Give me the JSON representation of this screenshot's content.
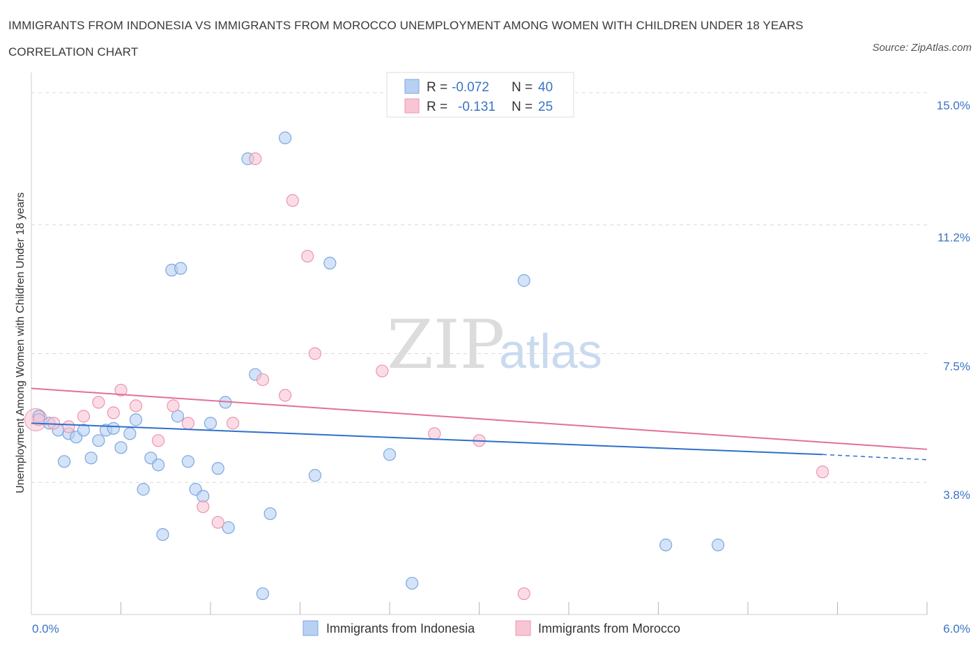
{
  "title": "IMMIGRANTS FROM INDONESIA VS IMMIGRANTS FROM MOROCCO UNEMPLOYMENT AMONG WOMEN WITH CHILDREN UNDER 18 YEARS CORRELATION CHART",
  "source": "Source: ZipAtlas.com",
  "watermark": {
    "zip": "ZIP",
    "atlas": "atlas"
  },
  "colors": {
    "indonesia_fill": "#b8d0f2",
    "indonesia_stroke": "#7aa7e0",
    "indonesia_line": "#2f6fcc",
    "morocco_fill": "#f8c5d4",
    "morocco_stroke": "#ec94b0",
    "morocco_line": "#e2709a",
    "tick_text": "#3b73c4",
    "grid": "#d9d9d9"
  },
  "legend": {
    "rows": [
      {
        "r_label": "R =",
        "r_value": "-0.072",
        "n_label": "N =",
        "n_value": "40"
      },
      {
        "r_label": "R =",
        "r_value": "-0.131",
        "n_label": "N =",
        "n_value": "25"
      }
    ]
  },
  "bottom_legend": [
    "Immigrants from Indonesia",
    "Immigrants from Morocco"
  ],
  "chart_data": {
    "type": "scatter",
    "xlabel": "",
    "ylabel": "Unemployment Among Women with Children Under 18 years",
    "xlim": [
      0,
      6
    ],
    "ylim": [
      0,
      15.3
    ],
    "x_tick_labels": [
      "0.0%",
      "6.0%"
    ],
    "y_ticks": [
      3.8,
      7.5,
      11.2,
      15.0
    ],
    "y_tick_labels": [
      "3.8%",
      "7.5%",
      "11.2%",
      "15.0%"
    ],
    "grid": true,
    "legend_position": "top-center",
    "series": [
      {
        "name": "Immigrants from Indonesia",
        "trend": {
          "x": [
            0.0,
            5.3
          ],
          "y": [
            5.5,
            4.6
          ],
          "dashed_to": [
            6.0,
            4.45
          ]
        },
        "points": [
          [
            0.05,
            5.7
          ],
          [
            0.12,
            5.5
          ],
          [
            0.18,
            5.3
          ],
          [
            0.22,
            4.4
          ],
          [
            0.25,
            5.2
          ],
          [
            0.3,
            5.1
          ],
          [
            0.35,
            5.3
          ],
          [
            0.4,
            4.5
          ],
          [
            0.45,
            5.0
          ],
          [
            0.5,
            5.3
          ],
          [
            0.55,
            5.35
          ],
          [
            0.6,
            4.8
          ],
          [
            0.66,
            5.2
          ],
          [
            0.7,
            5.6
          ],
          [
            0.75,
            3.6
          ],
          [
            0.8,
            4.5
          ],
          [
            0.85,
            4.3
          ],
          [
            0.88,
            2.3
          ],
          [
            0.94,
            9.9
          ],
          [
            0.98,
            5.7
          ],
          [
            1.0,
            9.95
          ],
          [
            1.05,
            4.4
          ],
          [
            1.1,
            3.6
          ],
          [
            1.15,
            3.4
          ],
          [
            1.2,
            5.5
          ],
          [
            1.25,
            4.2
          ],
          [
            1.3,
            6.1
          ],
          [
            1.32,
            2.5
          ],
          [
            1.45,
            13.1
          ],
          [
            1.5,
            6.9
          ],
          [
            1.55,
            0.6
          ],
          [
            1.6,
            2.9
          ],
          [
            1.7,
            13.7
          ],
          [
            1.9,
            4.0
          ],
          [
            2.0,
            10.1
          ],
          [
            2.4,
            4.6
          ],
          [
            2.55,
            0.9
          ],
          [
            3.3,
            9.6
          ],
          [
            4.25,
            2.0
          ],
          [
            4.6,
            2.0
          ]
        ]
      },
      {
        "name": "Immigrants from Morocco",
        "trend": {
          "x": [
            0.0,
            6.0
          ],
          "y": [
            6.5,
            4.75
          ]
        },
        "points": [
          [
            0.05,
            5.6
          ],
          [
            0.15,
            5.5
          ],
          [
            0.25,
            5.4
          ],
          [
            0.35,
            5.7
          ],
          [
            0.45,
            6.1
          ],
          [
            0.55,
            5.8
          ],
          [
            0.6,
            6.45
          ],
          [
            0.7,
            6.0
          ],
          [
            0.85,
            5.0
          ],
          [
            0.95,
            6.0
          ],
          [
            1.05,
            5.5
          ],
          [
            1.15,
            3.1
          ],
          [
            1.25,
            2.65
          ],
          [
            1.35,
            5.5
          ],
          [
            1.5,
            13.1
          ],
          [
            1.55,
            6.75
          ],
          [
            1.7,
            6.3
          ],
          [
            1.75,
            11.9
          ],
          [
            1.85,
            10.3
          ],
          [
            1.9,
            7.5
          ],
          [
            2.35,
            7.0
          ],
          [
            2.7,
            5.2
          ],
          [
            3.0,
            5.0
          ],
          [
            3.3,
            0.6
          ],
          [
            5.3,
            4.1
          ]
        ]
      }
    ]
  }
}
